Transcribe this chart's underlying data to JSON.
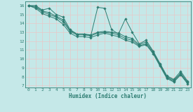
{
  "xlabel": "Humidex (Indice chaleur)",
  "bg_color": "#c5e8e8",
  "grid_color": "#d4eded",
  "line_color": "#2e7d72",
  "xlim": [
    -0.5,
    23.5
  ],
  "ylim": [
    6.8,
    16.5
  ],
  "yticks": [
    7,
    8,
    9,
    10,
    11,
    12,
    13,
    14,
    15,
    16
  ],
  "xticks": [
    0,
    1,
    2,
    3,
    4,
    5,
    6,
    7,
    8,
    9,
    10,
    11,
    12,
    13,
    14,
    15,
    16,
    17,
    18,
    19,
    20,
    21,
    22,
    23
  ],
  "lines": [
    [
      16.0,
      16.0,
      15.5,
      15.7,
      15.0,
      14.7,
      13.3,
      12.8,
      12.8,
      12.6,
      15.8,
      15.7,
      13.3,
      12.8,
      14.5,
      13.0,
      11.7,
      12.1,
      10.9,
      9.5,
      8.1,
      7.7,
      8.6,
      7.5
    ],
    [
      16.0,
      15.9,
      15.4,
      15.2,
      14.8,
      14.4,
      13.2,
      12.8,
      12.8,
      12.7,
      13.0,
      13.1,
      13.0,
      12.9,
      12.5,
      12.3,
      11.6,
      11.9,
      10.8,
      9.4,
      8.0,
      7.6,
      8.4,
      7.4
    ],
    [
      16.0,
      15.8,
      15.3,
      15.0,
      14.7,
      14.2,
      13.1,
      12.7,
      12.7,
      12.6,
      12.9,
      13.0,
      12.9,
      12.7,
      12.3,
      12.1,
      11.5,
      11.7,
      10.7,
      9.3,
      7.9,
      7.5,
      8.3,
      7.3
    ],
    [
      16.0,
      15.7,
      15.1,
      14.8,
      14.5,
      13.9,
      12.9,
      12.5,
      12.5,
      12.4,
      12.7,
      12.9,
      12.7,
      12.5,
      12.1,
      11.9,
      11.4,
      11.6,
      10.6,
      9.2,
      7.8,
      7.4,
      8.2,
      7.2
    ]
  ]
}
